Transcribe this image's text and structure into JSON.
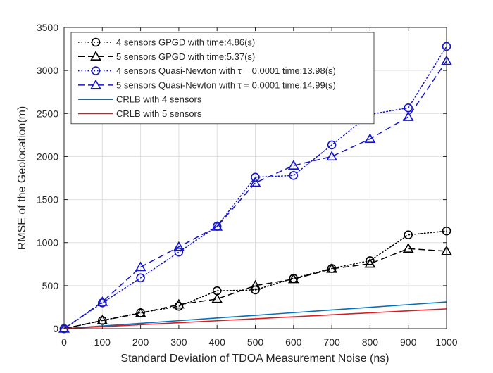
{
  "chart_data": {
    "type": "line",
    "xlabel": "Standard Deviation of TDOA Measurement Noise (ns)",
    "ylabel": "RMSE of the Geolocation(m)",
    "xlim": [
      0,
      1000
    ],
    "ylim": [
      0,
      3500
    ],
    "x_ticks": [
      0,
      100,
      200,
      300,
      400,
      500,
      600,
      700,
      800,
      900,
      1000
    ],
    "y_ticks": [
      0,
      500,
      1000,
      1500,
      2000,
      2500,
      3000,
      3500
    ],
    "grid": true,
    "legend_position": "top-left",
    "x": [
      0,
      100,
      200,
      300,
      400,
      500,
      600,
      700,
      800,
      900,
      1000
    ],
    "series": [
      {
        "name": "4 sensors GPGD with time:4.86(s)",
        "color": "#000000",
        "line_style": "dotted",
        "marker": "circle",
        "values": [
          0,
          95,
          185,
          260,
          440,
          450,
          585,
          700,
          790,
          1090,
          1135
        ]
      },
      {
        "name": "5 sensors GPGD with time:5.37(s)",
        "color": "#000000",
        "line_style": "dashed",
        "marker": "triangle",
        "values": [
          0,
          95,
          180,
          280,
          345,
          500,
          575,
          695,
          755,
          930,
          900
        ]
      },
      {
        "name": "4 sensors Quasi-Newton with τ = 0.0001 time:13.98(s)",
        "color": "#1515cc",
        "line_style": "dotted",
        "marker": "circle",
        "values": [
          0,
          300,
          590,
          890,
          1190,
          1760,
          1780,
          2135,
          2490,
          2565,
          3280
        ]
      },
      {
        "name": "5 sensors Quasi-Newton with τ = 0.0001 time:14.99(s)",
        "color": "#1515cc",
        "line_style": "dashed",
        "marker": "triangle",
        "values": [
          0,
          310,
          715,
          950,
          1185,
          1695,
          1895,
          2000,
          2205,
          2460,
          3110
        ]
      },
      {
        "name": "CRLB with 4 sensors",
        "color": "#0072bd",
        "line_style": "solid",
        "marker": "none",
        "values": [
          0,
          31,
          62,
          93,
          124,
          155,
          186,
          217,
          248,
          279,
          310
        ]
      },
      {
        "name": "CRLB with 5 sensors",
        "color": "#e0181e",
        "line_style": "solid",
        "marker": "none",
        "values": [
          0,
          23,
          46,
          69,
          92,
          115,
          138,
          161,
          184,
          207,
          230
        ]
      }
    ]
  }
}
